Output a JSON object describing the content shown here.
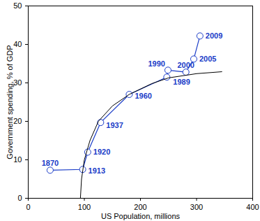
{
  "chart_data": {
    "type": "line",
    "x_label": "US Population, millions",
    "y_label": "Government spending, % of GDP",
    "xlim": [
      0,
      400
    ],
    "xticks": [
      0,
      100,
      200,
      300,
      400
    ],
    "ylim": [
      0,
      50
    ],
    "yticks": [
      0,
      10,
      20,
      30,
      40,
      50
    ],
    "grid": false,
    "series": [
      {
        "color": "#1a3cc8",
        "marker": "circle",
        "line_style": "solid",
        "x": [
          39,
          97,
          106,
          129,
          180,
          247,
          249,
          281,
          295,
          306
        ],
        "values": [
          7.3,
          7.5,
          12,
          19.7,
          27,
          31.5,
          33.3,
          32.8,
          36.2,
          42.2
        ],
        "labels": [
          "1870",
          "1913",
          "1920",
          "1937",
          "1960",
          "1989",
          "1990",
          "2000",
          "2005",
          "2009"
        ]
      },
      {
        "color": "#000000",
        "marker": "none",
        "line_style": "solid",
        "x": [
          93,
          95,
          100,
          110,
          125,
          150,
          180,
          220,
          250,
          300,
          345
        ],
        "values": [
          0,
          5,
          10,
          15,
          20,
          24,
          27,
          29.8,
          31.3,
          32.4,
          32.9
        ]
      }
    ]
  }
}
